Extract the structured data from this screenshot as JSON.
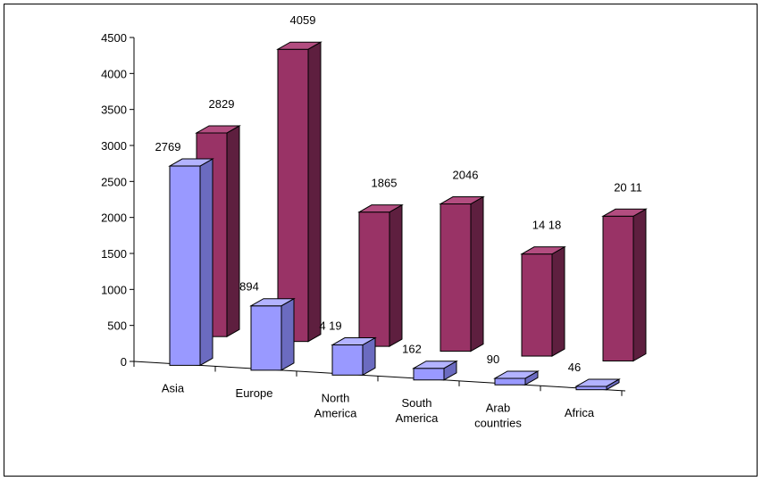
{
  "chart_data": {
    "type": "bar",
    "title": "",
    "xlabel": "",
    "ylabel": "",
    "categories": [
      "Asia",
      "Europe",
      "North America",
      "South America",
      "Arab countries",
      "Africa"
    ],
    "category_lines": [
      [
        "Asia"
      ],
      [
        "Europe"
      ],
      [
        "North",
        "America"
      ],
      [
        "South",
        "America"
      ],
      [
        "Arab",
        "countries"
      ],
      [
        "Africa"
      ]
    ],
    "series": [
      {
        "values": [
          2769,
          894,
          419,
          162,
          90,
          46
        ],
        "color": "#9999ff",
        "side_color": "#6b6bc0",
        "top_color": "#b3b3ff"
      },
      {
        "values": [
          2829,
          4059,
          1865,
          2046,
          1418,
          2011
        ],
        "color": "#993366",
        "side_color": "#5e1f3f",
        "top_color": "#b34d80"
      }
    ],
    "value_labels": [
      [
        "2769",
        "894",
        "4 19",
        "162",
        "90",
        "46"
      ],
      [
        "2829",
        "4059",
        "1865",
        "2046",
        "14 18",
        "20 11"
      ]
    ],
    "ylim": [
      0,
      4500
    ],
    "yticks": [
      0,
      500,
      1000,
      1500,
      2000,
      2500,
      3000,
      3500,
      4000,
      4500
    ],
    "chart_kind": "3d-column",
    "grid": false,
    "legend": "none"
  }
}
